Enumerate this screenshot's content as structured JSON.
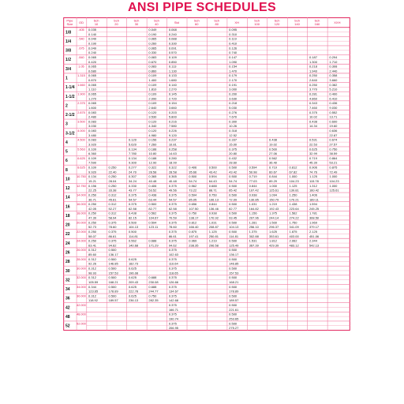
{
  "title": "ANSI PIPE SCHEDULES",
  "colors": {
    "accent": "#e0114f",
    "grid": "#f07aa0",
    "text": "#222222"
  },
  "header": {
    "pipe_size": [
      "Pipe",
      "Size"
    ],
    "od": [
      "OD"
    ],
    "columns": [
      [
        "Sch",
        "10"
      ],
      [
        "Sch",
        "20"
      ],
      [
        "Sch",
        "30"
      ],
      [
        "Sch",
        "40"
      ],
      [
        "Std"
      ],
      [
        "Sch",
        "60"
      ],
      [
        "Sch",
        "80"
      ],
      [
        "XH"
      ],
      [
        "Sch",
        "100"
      ],
      [
        "Sch",
        "120"
      ],
      [
        "Sch",
        "140"
      ],
      [
        "Sch",
        "160"
      ],
      [
        "XXH"
      ]
    ]
  },
  "sizes": [
    {
      "nps": "1/8",
      "od": ".405",
      "wall": [
        "0.035",
        "",
        "",
        "0.049",
        "0.068",
        "",
        "",
        "0.095",
        "",
        "",
        "",
        "",
        ""
      ],
      "weight": [
        "0.140",
        "",
        "",
        "0.190",
        "0.240",
        "",
        "",
        "0.310",
        "",
        "",
        "",
        "",
        ""
      ]
    },
    {
      "nps": "1/4",
      "od": ".540",
      "wall": [
        "0.049",
        "",
        "",
        "0.065",
        "0.088",
        "",
        "",
        "0.119",
        "",
        "",
        "",
        "",
        ""
      ],
      "weight": [
        "0.190",
        "",
        "",
        "0.260",
        "0.330",
        "",
        "",
        "0.410",
        "",
        "",
        "",
        "",
        ""
      ]
    },
    {
      "nps": "3/8",
      "od": ".675",
      "wall": [
        "0.049",
        "",
        "",
        "0.065",
        "0.091",
        "",
        "",
        "0.126",
        "",
        "",
        "",
        "",
        ""
      ],
      "weight": [
        "0.240",
        "",
        "",
        "0.330",
        "0.570",
        "",
        "",
        "0.740",
        "",
        "",
        "",
        "",
        ""
      ]
    },
    {
      "nps": "1/2",
      "od": ".840",
      "wall": [
        "0.065",
        "",
        "",
        "0.083",
        "0.109",
        "",
        "",
        "0.147",
        "",
        "",
        "",
        "0.187",
        "0.294"
      ],
      "weight": [
        "0.420",
        "",
        "",
        "0.670",
        "0.850",
        "",
        "",
        "1.090",
        "",
        "",
        "",
        "1.300",
        "1.710"
      ]
    },
    {
      "nps": "3/4",
      "od": "1.05",
      "wall": [
        "0.065",
        "",
        "",
        "0.083",
        "0.113",
        "",
        "",
        "0.154",
        "",
        "",
        "",
        "0.218",
        "0.308"
      ],
      "weight": [
        "0.680",
        "",
        "",
        "0.860",
        "1.130",
        "",
        "",
        "1.470",
        "",
        "",
        "",
        "1.940",
        "2.440"
      ]
    },
    {
      "nps": "1",
      "od": "1.315",
      "wall": [
        "0.065",
        "",
        "",
        "0.109",
        "0.133",
        "",
        "",
        "0.179",
        "",
        "",
        "",
        "0.250",
        "0.358"
      ],
      "weight": [
        "0.870",
        "",
        "",
        "1.400",
        "1.680",
        "",
        "",
        "2.170",
        "",
        "",
        "",
        "2.840",
        "3.660"
      ]
    },
    {
      "nps": "1-1/4",
      "od": "1.660",
      "wall": [
        "0.065",
        "",
        "",
        "0.109",
        "0.140",
        "",
        "",
        "0.191",
        "",
        "",
        "",
        "0.250",
        "0.382"
      ],
      "weight": [
        "1.110",
        "",
        "",
        "1.810",
        "2.270",
        "",
        "",
        "3.000",
        "",
        "",
        "",
        "3.770",
        "5.210"
      ]
    },
    {
      "nps": "1-1/2",
      "od": "1.900",
      "wall": [
        "0.065",
        "",
        "",
        "0.109",
        "0.145",
        "",
        "",
        "0.200",
        "",
        "",
        "",
        "0.281",
        "0.400"
      ],
      "weight": [
        "1.270",
        "",
        "",
        "2.090",
        "2.720",
        "",
        "",
        "3.630",
        "",
        "",
        "",
        "4.860",
        "6.410"
      ]
    },
    {
      "nps": "2",
      "od": "2.375",
      "wall": [
        "0.065",
        "",
        "",
        "0.109",
        "0.154",
        "",
        "",
        "0.218",
        "",
        "",
        "",
        "0.343",
        "0.436"
      ],
      "weight": [
        "1.600",
        "",
        "",
        "2.640",
        "3.660",
        "",
        "",
        "5.030",
        "",
        "",
        "",
        "7.460",
        "9.030"
      ]
    },
    {
      "nps": "2-1/2",
      "od": "2.875",
      "wall": [
        "0.083",
        "",
        "",
        "0.120",
        "0.203",
        "",
        "",
        "0.276",
        "",
        "",
        "",
        "0.375",
        "0.552"
      ],
      "weight": [
        "2.480",
        "",
        "",
        "3.530",
        "5.800",
        "",
        "",
        "7.670",
        "",
        "",
        "",
        "10.02",
        "13.71"
      ]
    },
    {
      "nps": "3",
      "od": "3.500",
      "wall": [
        "0.083",
        "",
        "",
        "0.120",
        "0.216",
        "",
        "",
        "0.300",
        "",
        "",
        "",
        "0.438",
        "0.600"
      ],
      "weight": [
        "3.030",
        "",
        "",
        "4.340",
        "7.580",
        "",
        "",
        "10.26",
        "",
        "",
        "",
        "14.34",
        "19.60"
      ]
    },
    {
      "nps": "3-1/2",
      "od": "4.000",
      "wall": [
        "0.083",
        "",
        "",
        "0.120",
        "0.226",
        "",
        "",
        "0.318",
        "",
        "",
        "",
        "",
        "0.636"
      ],
      "weight": [
        "3.480",
        "",
        "",
        "4.980",
        "9.120",
        "",
        "",
        "12.52",
        "",
        "",
        "",
        "",
        "22.87"
      ]
    },
    {
      "nps": "4",
      "od": "4.500",
      "wall": [
        "0.083",
        "",
        "0.120",
        "0.156",
        "0.237",
        "",
        "",
        "0.337",
        "",
        "0.438",
        "",
        "0.531",
        "0.674"
      ],
      "weight": [
        "3.920",
        "",
        "5.620",
        "7.260",
        "10.81",
        "",
        "",
        "15.00",
        "",
        "19.02",
        "",
        "22.53",
        "27.57"
      ]
    },
    {
      "nps": "5",
      "od": "5.563",
      "wall": [
        "0.109",
        "",
        "0.134",
        "0.188",
        "0.258",
        "",
        "",
        "0.375",
        "",
        "0.500",
        "",
        "0.625",
        "0.750"
      ],
      "weight": [
        "6.360",
        "",
        "7.780",
        "10.80",
        "14.63",
        "",
        "",
        "20.80",
        "",
        "27.06",
        "",
        "32.99",
        "38.59"
      ]
    },
    {
      "nps": "6",
      "od": "6.625",
      "wall": [
        "0.109",
        "",
        "0.134",
        "0.188",
        "0.280",
        "",
        "",
        "0.432",
        "",
        "0.562",
        "",
        "0.719",
        "0.864"
      ],
      "weight": [
        "7.590",
        "",
        "9.300",
        "12.90",
        "18.99",
        "",
        "",
        "28.60",
        "",
        "36.40",
        "",
        "45.39",
        "53.21"
      ]
    },
    {
      "nps": "8",
      "od": "8.625",
      "wall": [
        "0.109",
        "0.250",
        "0.277",
        "0.322",
        "0.322",
        "0.406",
        "0.500",
        "0.500",
        "0.594",
        "0.719",
        "0.812",
        "0.906",
        "0.875"
      ],
      "weight": [
        "9.920",
        "22.40",
        "24.70",
        "28.58",
        "28.58",
        "35.66",
        "43.42",
        "43.42",
        "50.98",
        "60.67",
        "67.82",
        "74.76",
        "72.49"
      ]
    },
    {
      "nps": "10",
      "od": "10.750",
      "wall": [
        "0.134",
        "0.250",
        "0.307",
        "0.365",
        "0.365",
        "0.500",
        "0.594",
        "0.500",
        "0.719",
        "0.844",
        "1.000",
        "1.125",
        "1.000"
      ],
      "weight": [
        "15.21",
        "28.04",
        "34.24",
        "40.48",
        "40.48",
        "54.74",
        "64.43",
        "54.74",
        "77.03",
        "89.29",
        "104.23",
        "115.78",
        "104.23"
      ]
    },
    {
      "nps": "12",
      "od": "12.750",
      "wall": [
        "0.156",
        "0.250",
        "0.330",
        "0.406",
        "0.375",
        "0.562",
        "0.688",
        "0.500",
        "0.844",
        "1.000",
        "1.125",
        "1.312",
        "1.000"
      ],
      "weight": [
        "22.25",
        "33.38",
        "43.77",
        "53.52",
        "49.56",
        "73.22",
        "88.71",
        "65.42",
        "107.42",
        "125.61",
        "139.81",
        "160.42",
        "125.61"
      ]
    },
    {
      "nps": "14",
      "od": "14.000",
      "wall": [
        "0.250",
        "0.312",
        "0.375",
        "0.438",
        "0.375",
        "0.594",
        "0.750",
        "0.500",
        "0.938",
        "1.094",
        "1.250",
        "1.406",
        ""
      ],
      "weight": [
        "36.71",
        "45.61",
        "54.57",
        "63.44",
        "54.57",
        "85.05",
        "106.13",
        "72.09",
        "130.85",
        "150.79",
        "170.21",
        "189.11",
        ""
      ]
    },
    {
      "nps": "16",
      "od": "16.000",
      "wall": [
        "0.250",
        "0.312",
        "0.375",
        "0.500",
        "0.375",
        "0.656",
        "0.844",
        "0.500",
        "1.031",
        "1.219",
        "1.438",
        "1.594",
        ""
      ],
      "weight": [
        "42.05",
        "52.27",
        "62.58",
        "82.77",
        "62.58",
        "107.50",
        "136.46",
        "82.77",
        "164.82",
        "192.43",
        "223.64",
        "245.25",
        ""
      ]
    },
    {
      "nps": "18",
      "od": "18.000",
      "wall": [
        "0.250",
        "0.312",
        "0.438",
        "0.562",
        "0.375",
        "0.750",
        "0.938",
        "0.500",
        "1.156",
        "1.375",
        "1.562",
        "1.781",
        ""
      ],
      "weight": [
        "47.39",
        "58.94",
        "82.15",
        "104.67",
        "70.59",
        "138.17",
        "170.92",
        "93.45",
        "207.96",
        "244.14",
        "274.22",
        "308.50",
        ""
      ]
    },
    {
      "nps": "20",
      "od": "20.000",
      "wall": [
        "0.250",
        "0.375",
        "0.500",
        "0.594",
        "0.375",
        "0.812",
        "1.031",
        "0.500",
        "1.281",
        "1.500",
        "1.750",
        "1.969",
        ""
      ],
      "weight": [
        "52.73",
        "78.60",
        "104.13",
        "123.11",
        "78.60",
        "166.40",
        "208.87",
        "104.13",
        "256.10",
        "296.37",
        "341.09",
        "379.17",
        ""
      ]
    },
    {
      "nps": "22",
      "od": "22.000",
      "wall": [
        "0.250",
        "0.375",
        "0.500",
        "",
        "0.375",
        "0.875",
        "1.125",
        "0.500",
        "1.375",
        "1.625",
        "1.875",
        "2.125",
        ""
      ],
      "weight": [
        "58.07",
        "86.61",
        "114.81",
        "",
        "86.61",
        "197.41",
        "250.81",
        "114.81",
        "302.88",
        "353.61",
        "403.00",
        "451.06",
        ""
      ]
    },
    {
      "nps": "24",
      "od": "24.000",
      "wall": [
        "0.250",
        "0.375",
        "0.562",
        "0.688",
        "0.375",
        "0.969",
        "1.219",
        "0.500",
        "1.531",
        "1.812",
        "2.062",
        "2.344",
        ""
      ],
      "weight": [
        "63.41",
        "94.62",
        "140.68",
        "171.29",
        "94.62",
        "238.35",
        "296.58",
        "125.49",
        "367.39",
        "429.39",
        "483.12",
        "542.13",
        ""
      ]
    },
    {
      "nps": "26",
      "od": "26.000",
      "wall": [
        "0.312",
        "0.500",
        "",
        "",
        "0.375",
        "",
        "",
        "0.500",
        "",
        "",
        "",
        "",
        ""
      ],
      "weight": [
        "85.60",
        "136.17",
        "",
        "",
        "102.63",
        "",
        "",
        "136.17",
        "",
        "",
        "",
        "",
        ""
      ]
    },
    {
      "nps": "28",
      "od": "28.000",
      "wall": [
        "0.312",
        "0.500",
        "0.625",
        "",
        "0.375",
        "",
        "",
        "0.500",
        "",
        "",
        "",
        "",
        ""
      ],
      "weight": [
        "92.26",
        "146.85",
        "182.73",
        "",
        "110.64",
        "",
        "",
        "146.85",
        "",
        "",
        "",
        "",
        ""
      ]
    },
    {
      "nps": "30",
      "od": "30.000",
      "wall": [
        "0.312",
        "0.500",
        "0.625",
        "",
        "0.375",
        "",
        "",
        "0.500",
        "",
        "",
        "",
        "",
        ""
      ],
      "weight": [
        "98.93",
        "157.53",
        "196.08",
        "",
        "118.65",
        "",
        "",
        "157.53",
        "",
        "",
        "",
        "",
        ""
      ]
    },
    {
      "nps": "32",
      "od": "32.000",
      "wall": [
        "0.312",
        "0.500",
        "0.625",
        "0.688",
        "0.375",
        "",
        "",
        "0.500",
        "",
        "",
        "",
        "",
        ""
      ],
      "weight": [
        "105.59",
        "168.21",
        "209.43",
        "230.08",
        "126.66",
        "",
        "",
        "168.21",
        "",
        "",
        "",
        "",
        ""
      ]
    },
    {
      "nps": "34",
      "od": "34.000",
      "wall": [
        "0.344",
        "0.500",
        "0.625",
        "0.688",
        "0.375",
        "",
        "",
        "0.500",
        "",
        "",
        "",
        "",
        ""
      ],
      "weight": [
        "123.65",
        "178.89",
        "222.78",
        "244.77",
        "134.67",
        "",
        "",
        "178.89",
        "",
        "",
        "",
        "",
        ""
      ]
    },
    {
      "nps": "36",
      "od": "36.000",
      "wall": [
        "0.312",
        "0.500",
        "0.625",
        "0.750",
        "0.375",
        "",
        "",
        "0.500",
        "",
        "",
        "",
        "",
        ""
      ],
      "weight": [
        "118.92",
        "189.57",
        "236.13",
        "282.35",
        "142.68",
        "",
        "",
        "189.57",
        "",
        "",
        "",
        "",
        ""
      ]
    },
    {
      "nps": "42",
      "od": "42.000",
      "wall": [
        "",
        "",
        "",
        "",
        "0.375",
        "",
        "",
        "0.500",
        "",
        "",
        "",
        "",
        ""
      ],
      "weight": [
        "",
        "",
        "",
        "",
        "166.71",
        "",
        "",
        "221.61",
        "",
        "",
        "",
        "",
        ""
      ]
    },
    {
      "nps": "48",
      "od": "48.000",
      "wall": [
        "",
        "",
        "",
        "",
        "0.375",
        "",
        "",
        "0.500",
        "",
        "",
        "",
        "",
        ""
      ],
      "weight": [
        "",
        "",
        "",
        "",
        "190.74",
        "",
        "",
        "253.65",
        "",
        "",
        "",
        "",
        ""
      ]
    },
    {
      "nps": "52",
      "od": "52.000",
      "wall": [
        "",
        "",
        "",
        "",
        "0.375",
        "",
        "",
        "0.500",
        "",
        "",
        "",
        "",
        ""
      ],
      "weight": [
        "",
        "",
        "",
        "",
        "206.95",
        "",
        "",
        "275.27",
        "",
        "",
        "",
        "",
        ""
      ]
    }
  ]
}
